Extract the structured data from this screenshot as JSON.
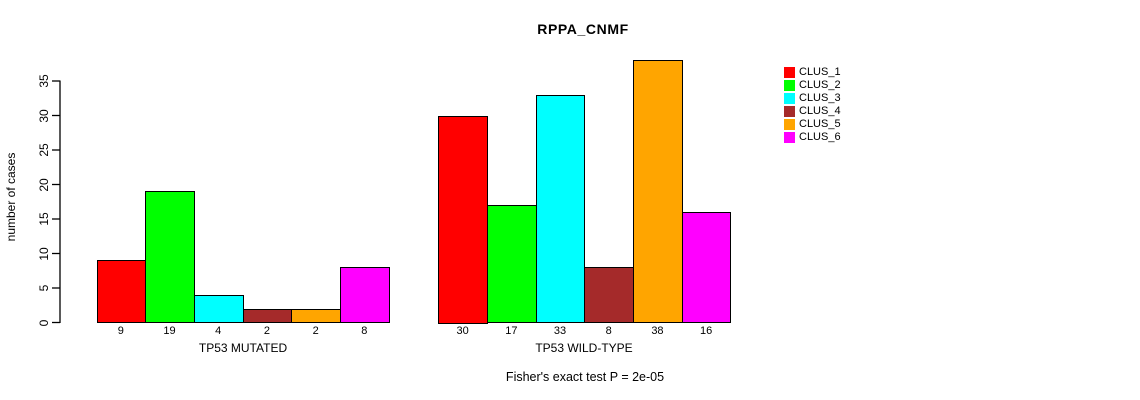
{
  "chart_data": {
    "type": "bar",
    "title": "RPPA_CNMF",
    "ylabel": "number of cases",
    "xlabel": "",
    "ylim": [
      0,
      38
    ],
    "yticks": [
      0,
      5,
      10,
      15,
      20,
      25,
      30,
      35
    ],
    "grid": false,
    "legend_position": "right",
    "categories": [
      "TP53 MUTATED",
      "TP53 WILD-TYPE"
    ],
    "series": [
      {
        "name": "CLUS_1",
        "color": "#FF0000",
        "values": [
          9,
          30
        ]
      },
      {
        "name": "CLUS_2",
        "color": "#00FF00",
        "values": [
          19,
          17
        ]
      },
      {
        "name": "CLUS_3",
        "color": "#00FFFF",
        "values": [
          4,
          33
        ]
      },
      {
        "name": "CLUS_4",
        "color": "#A52A2A",
        "values": [
          2,
          8
        ]
      },
      {
        "name": "CLUS_5",
        "color": "#FFA500",
        "values": [
          2,
          38
        ]
      },
      {
        "name": "CLUS_6",
        "color": "#FF00FF",
        "values": [
          8,
          16
        ]
      }
    ],
    "groups": [
      {
        "label": "TP53 MUTATED",
        "values": [
          9,
          19,
          4,
          2,
          2,
          8
        ],
        "bar_labels": [
          "9",
          "19",
          "4",
          "2",
          "2",
          "8"
        ]
      },
      {
        "label": "TP53 WILD-TYPE",
        "values": [
          30,
          17,
          33,
          8,
          38,
          16
        ],
        "bar_labels": [
          "30",
          "17",
          "33",
          "8",
          "38",
          "16"
        ]
      }
    ],
    "annotation": "Fisher's exact test P = 2e-05",
    "axis_color": "#000000",
    "bar_border_color": "#000000",
    "background_color": "#FFFFFF"
  }
}
